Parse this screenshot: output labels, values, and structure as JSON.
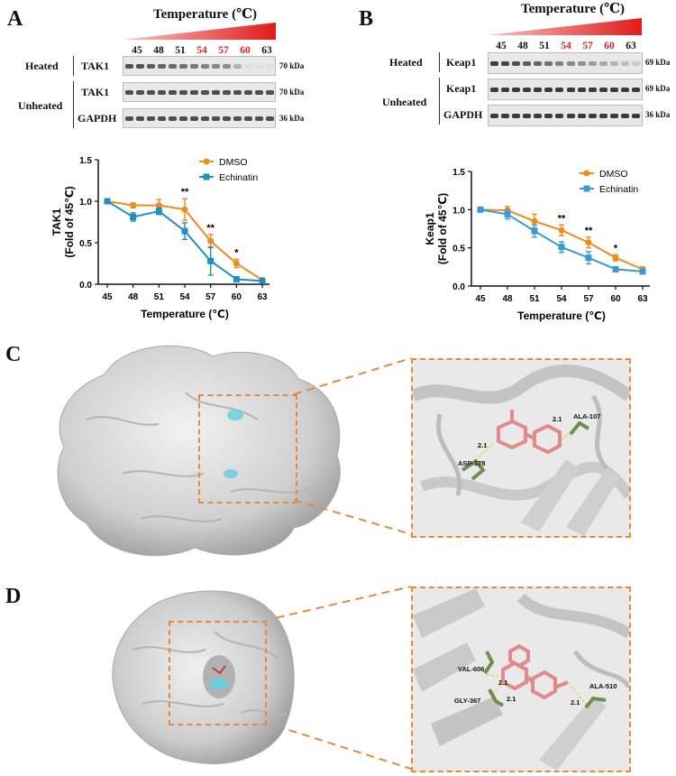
{
  "panels": {
    "a": "A",
    "b": "B",
    "c": "C",
    "d": "D"
  },
  "westerns": [
    {
      "id": "A",
      "temp_title": "Temperature (℃)",
      "temps": [
        "45",
        "48",
        "51",
        "54",
        "57",
        "60",
        "63"
      ],
      "temp_colors": [
        "#111",
        "#111",
        "#111",
        "#d21f1f",
        "#d21f1f",
        "#d21f1f",
        "#111"
      ],
      "heated_label": "Heated",
      "unheated_label": "Unheated",
      "heated_protein": "TAK1",
      "unheated_protein": "TAK1",
      "loading": "GAPDH",
      "heated_kda": "70 kDa",
      "unheated_kda": "70 kDa",
      "loading_kda": "36 kDa"
    },
    {
      "id": "B",
      "temp_title": "Temperature (℃)",
      "temps": [
        "45",
        "48",
        "51",
        "54",
        "57",
        "60",
        "63"
      ],
      "temp_colors": [
        "#111",
        "#111",
        "#111",
        "#d21f1f",
        "#d21f1f",
        "#d21f1f",
        "#111"
      ],
      "heated_label": "Heated",
      "unheated_label": "Unheated",
      "heated_protein": "Keap1",
      "unheated_protein": "Keap1",
      "loading": "GAPDH",
      "heated_kda": "69 kDa",
      "unheated_kda": "69 kDa",
      "loading_kda": "36 kDa"
    }
  ],
  "chart_data": [
    {
      "type": "line",
      "xlabel": "Temperature (℃)",
      "ylabel_line1": "TAK1",
      "ylabel_line2": "(Fold of 45℃)",
      "x": [
        "45",
        "48",
        "51",
        "54",
        "57",
        "60",
        "63"
      ],
      "ylim": [
        0,
        1.5
      ],
      "yticks": [
        "0.0",
        "0.5",
        "1.0",
        "1.5"
      ],
      "legend_position": "top-right",
      "series": [
        {
          "name": "DMSO",
          "color": "#f08c1e",
          "marker": "circle",
          "values": [
            1.0,
            0.95,
            0.95,
            0.9,
            0.52,
            0.25,
            0.05
          ],
          "errors": [
            0.02,
            0.03,
            0.07,
            0.13,
            0.08,
            0.05,
            0.02
          ]
        },
        {
          "name": "Echinatin",
          "color": "#1e8fc2",
          "marker": "square",
          "values": [
            1.0,
            0.81,
            0.88,
            0.64,
            0.28,
            0.06,
            0.04
          ],
          "errors": [
            0.02,
            0.05,
            0.04,
            0.1,
            0.17,
            0.03,
            0.02
          ]
        }
      ],
      "annotations": [
        {
          "x": "54",
          "text": "**"
        },
        {
          "x": "57",
          "text": "**"
        },
        {
          "x": "60",
          "text": "*"
        }
      ]
    },
    {
      "type": "line",
      "xlabel": "Temperature (℃)",
      "ylabel_line1": "Keap1",
      "ylabel_line2": "(Fold of 45℃)",
      "x": [
        "45",
        "48",
        "51",
        "54",
        "57",
        "60",
        "63"
      ],
      "ylim": [
        0,
        1.5
      ],
      "yticks": [
        "0.0",
        "0.5",
        "1.0",
        "1.5"
      ],
      "legend_position": "top-right",
      "series": [
        {
          "name": "DMSO",
          "color": "#f08c1e",
          "marker": "circle",
          "values": [
            1.0,
            0.99,
            0.85,
            0.73,
            0.57,
            0.37,
            0.22
          ],
          "errors": [
            0.02,
            0.05,
            0.09,
            0.07,
            0.07,
            0.04,
            0.03
          ]
        },
        {
          "name": "Echinatin",
          "color": "#3b9ad2",
          "marker": "square",
          "values": [
            1.0,
            0.94,
            0.72,
            0.51,
            0.37,
            0.22,
            0.19
          ],
          "errors": [
            0.02,
            0.06,
            0.08,
            0.07,
            0.08,
            0.03,
            0.03
          ]
        }
      ],
      "annotations": [
        {
          "x": "54",
          "text": "**"
        },
        {
          "x": "57",
          "text": "**"
        },
        {
          "x": "60",
          "text": "*"
        }
      ]
    }
  ],
  "docking_c": {
    "residues": [
      "ALA-107",
      "ASP-178"
    ],
    "distances": [
      "2.1",
      "2.1"
    ]
  },
  "docking_d": {
    "residues": [
      "VAL-606",
      "GLY-367",
      "ALA-510"
    ],
    "distances": [
      "2.1",
      "2.1",
      "2.1"
    ]
  },
  "colors": {
    "orange": "#e8893b",
    "red": "#d21f1f",
    "ligand": "#e28a8a",
    "residue": "#6f8f4e",
    "pocket": "#5fd0e0"
  }
}
